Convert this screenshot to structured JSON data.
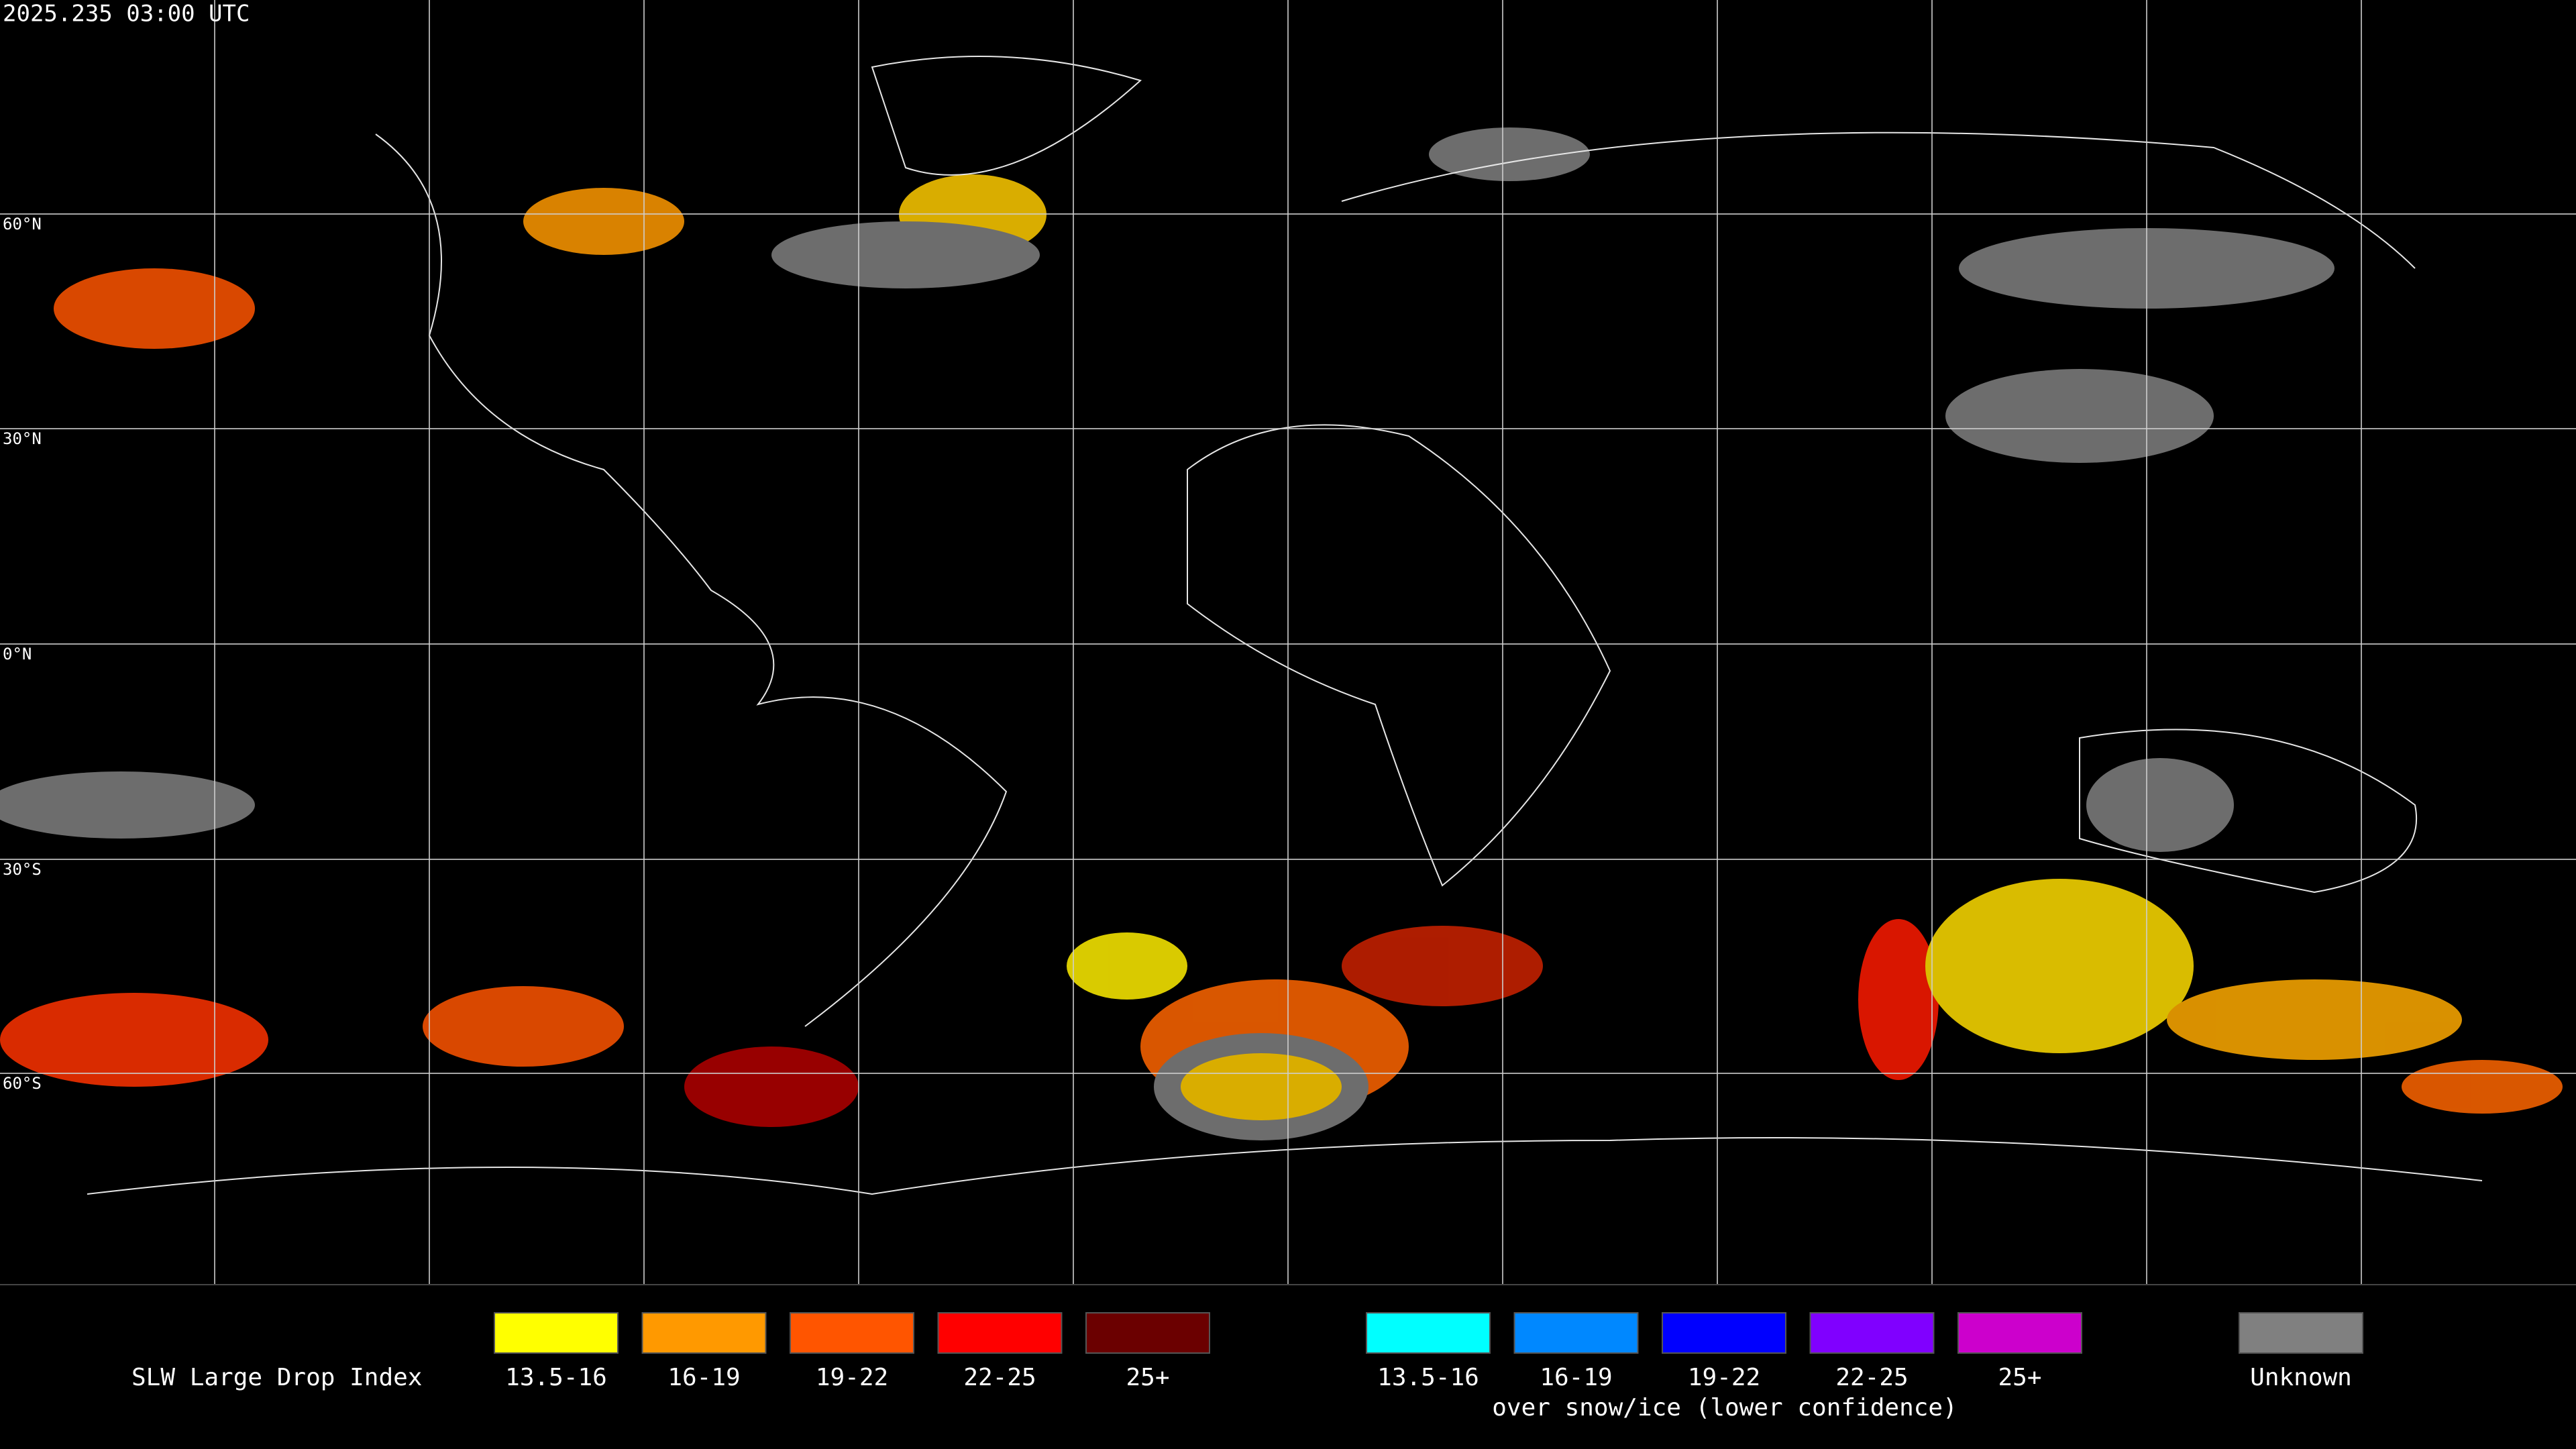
{
  "header": {
    "timestamp": "2025.235 03:00 UTC"
  },
  "map": {
    "lat_labels": [
      "60°N",
      "30°N",
      "0°N",
      "30°S",
      "60°S"
    ]
  },
  "legend": {
    "title": "SLW Large Drop Index",
    "groups": [
      {
        "items": [
          {
            "label": "13.5-16",
            "color": "#ffff00"
          },
          {
            "label": "16-19",
            "color": "#ff9900"
          },
          {
            "label": "19-22",
            "color": "#ff5500"
          },
          {
            "label": "22-25",
            "color": "#ff0000"
          },
          {
            "label": "25+",
            "color": "#6b0000"
          }
        ]
      },
      {
        "items": [
          {
            "label": "13.5-16",
            "color": "#00ffff"
          },
          {
            "label": "16-19",
            "color": "#0088ff"
          },
          {
            "label": "19-22",
            "color": "#0000ff"
          },
          {
            "label": "22-25",
            "color": "#8000ff"
          },
          {
            "label": "25+",
            "color": "#cc00cc"
          }
        ],
        "caption": "over snow/ice (lower confidence)"
      }
    ],
    "unknown": {
      "label": "Unknown",
      "color": "#808080"
    }
  }
}
